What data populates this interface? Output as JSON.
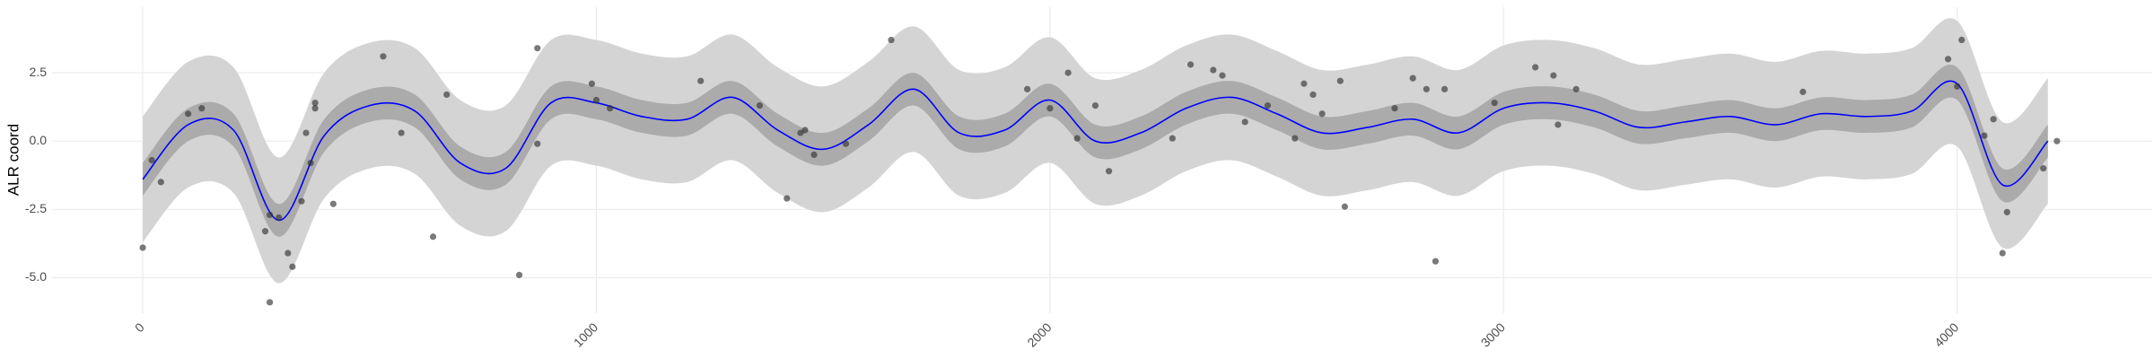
{
  "chart_data": {
    "type": "line",
    "y_label": "ALR coord",
    "xlim": [
      -200,
      4430
    ],
    "ylim": [
      -6.3,
      4.9
    ],
    "xticks": [
      0,
      1000,
      2000,
      3000,
      4000
    ],
    "yticks": [
      {
        "value": -5.0,
        "label": "-5.0"
      },
      -2.5,
      {
        "value": 0.0,
        "label": "0.0"
      },
      2.5
    ],
    "grid": true,
    "x": [
      0,
      100,
      200,
      300,
      400,
      500,
      600,
      700,
      800,
      900,
      1000,
      1100,
      1200,
      1300,
      1400,
      1500,
      1600,
      1700,
      1800,
      1900,
      2000,
      2100,
      2200,
      2300,
      2400,
      2500,
      2600,
      2700,
      2800,
      2900,
      3000,
      3100,
      3200,
      3300,
      3400,
      3500,
      3600,
      3700,
      3800,
      3900,
      4000,
      4100,
      4200
    ],
    "bands": [
      {
        "color": "#d4d4d4",
        "lower": [
          -3.7,
          -1.7,
          -1.9,
          -5.2,
          -2.1,
          -1.0,
          -1.2,
          -3.1,
          -3.3,
          -0.9,
          -0.9,
          -1.4,
          -1.5,
          -0.7,
          -1.9,
          -2.6,
          -1.7,
          -0.4,
          -2.0,
          -1.9,
          -0.8,
          -2.3,
          -2.0,
          -1.1,
          -0.7,
          -1.3,
          -2.0,
          -1.8,
          -1.5,
          -2.0,
          -1.1,
          -0.9,
          -1.2,
          -1.8,
          -1.6,
          -1.4,
          -1.7,
          -1.3,
          -1.4,
          -1.2,
          -0.2,
          -3.9,
          -2.3
        ],
        "upper": [
          0.9,
          2.9,
          2.7,
          -0.6,
          2.5,
          3.6,
          3.4,
          1.5,
          1.3,
          3.7,
          3.7,
          3.2,
          3.1,
          3.9,
          2.7,
          2.0,
          2.9,
          4.2,
          2.6,
          2.7,
          3.8,
          2.3,
          2.6,
          3.5,
          3.9,
          3.3,
          2.6,
          2.8,
          3.1,
          2.6,
          3.5,
          3.7,
          3.4,
          2.8,
          3.0,
          3.2,
          2.9,
          3.3,
          3.2,
          3.4,
          4.4,
          0.7,
          2.3
        ]
      },
      {
        "color": "#ababab",
        "lower": [
          -2.0,
          0.0,
          -0.2,
          -3.5,
          -0.4,
          0.7,
          0.5,
          -1.4,
          -1.6,
          0.8,
          0.8,
          0.3,
          0.2,
          1.0,
          -0.2,
          -0.9,
          0.0,
          1.3,
          -0.3,
          -0.2,
          0.9,
          -0.6,
          -0.3,
          0.6,
          1.0,
          0.4,
          -0.3,
          -0.1,
          0.2,
          -0.3,
          0.6,
          0.8,
          0.5,
          -0.1,
          0.1,
          0.3,
          0.0,
          0.4,
          0.3,
          0.5,
          1.5,
          -2.2,
          -0.6
        ],
        "upper": [
          -0.8,
          1.2,
          1.0,
          -2.3,
          0.8,
          1.9,
          1.7,
          -0.2,
          -0.4,
          2.0,
          2.0,
          1.5,
          1.4,
          2.2,
          1.0,
          0.3,
          1.2,
          2.5,
          0.9,
          1.0,
          2.1,
          0.6,
          0.9,
          1.8,
          2.2,
          1.6,
          0.9,
          1.1,
          1.4,
          0.9,
          1.8,
          2.0,
          1.7,
          1.1,
          1.3,
          1.5,
          1.2,
          1.6,
          1.5,
          1.7,
          2.7,
          -1.0,
          0.6
        ]
      }
    ],
    "line": {
      "color": "#0000ff",
      "values": [
        -1.4,
        0.6,
        0.4,
        -2.9,
        0.2,
        1.3,
        1.1,
        -0.8,
        -1.0,
        1.4,
        1.4,
        0.9,
        0.8,
        1.6,
        0.4,
        -0.3,
        0.6,
        1.9,
        0.3,
        0.4,
        1.5,
        0.0,
        0.3,
        1.2,
        1.6,
        1.0,
        0.3,
        0.5,
        0.8,
        0.3,
        1.2,
        1.4,
        1.1,
        0.5,
        0.7,
        0.9,
        0.6,
        1.0,
        0.9,
        1.1,
        2.1,
        -1.6,
        0.0
      ]
    },
    "points": {
      "color": "#333333",
      "x": [
        0,
        20,
        40,
        100,
        130,
        270,
        280,
        280,
        300,
        320,
        330,
        350,
        360,
        370,
        380,
        380,
        420,
        530,
        570,
        640,
        670,
        830,
        870,
        870,
        990,
        1000,
        1030,
        1230,
        1360,
        1420,
        1450,
        1460,
        1480,
        1550,
        1650,
        1950,
        2000,
        2040,
        2060,
        2100,
        2130,
        2270,
        2310,
        2360,
        2380,
        2430,
        2480,
        2540,
        2560,
        2580,
        2600,
        2640,
        2650,
        2760,
        2800,
        2830,
        2850,
        2870,
        2980,
        3070,
        3110,
        3120,
        3160,
        3660,
        3980,
        4000,
        4010,
        4060,
        4080,
        4100,
        4110,
        4190,
        4220
      ],
      "y": [
        -3.9,
        -0.7,
        -1.5,
        1.0,
        1.2,
        -3.3,
        -2.7,
        -5.9,
        -2.8,
        -4.1,
        -4.6,
        -2.2,
        0.3,
        -0.8,
        1.2,
        1.4,
        -2.3,
        3.1,
        0.3,
        -3.5,
        1.7,
        -4.9,
        3.4,
        -0.1,
        2.1,
        1.5,
        1.2,
        2.2,
        1.3,
        -2.1,
        0.3,
        0.4,
        -0.5,
        -0.1,
        3.7,
        1.9,
        1.2,
        2.5,
        0.1,
        1.3,
        -1.1,
        0.1,
        2.8,
        2.6,
        2.4,
        0.7,
        1.3,
        0.1,
        2.1,
        1.7,
        1.0,
        2.2,
        -2.4,
        1.2,
        2.3,
        1.9,
        -4.4,
        1.9,
        1.4,
        2.7,
        2.4,
        0.6,
        1.9,
        1.8,
        3.0,
        2.0,
        3.7,
        0.2,
        0.8,
        -4.1,
        -2.6,
        -1.0,
        0.0
      ]
    }
  }
}
